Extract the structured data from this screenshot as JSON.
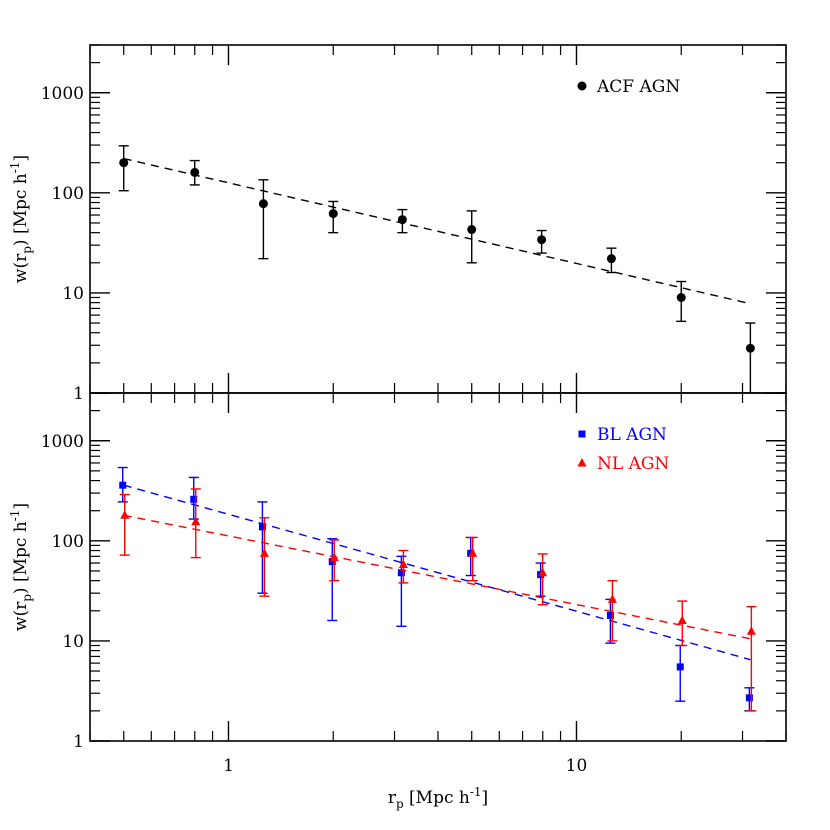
{
  "chart_data": [
    {
      "type": "scatter",
      "xscale": "log",
      "yscale": "log",
      "xlim": [
        0.4,
        40
      ],
      "ylim": [
        1,
        3000
      ],
      "ylabel": "w(r_p) [Mpc h^-1]",
      "ylabel_parts": {
        "main": "w(r",
        "sub": "p",
        "tail": ") [Mpc h",
        "sup": "-1",
        "end": "]"
      },
      "yticks": [
        1,
        10,
        100,
        1000
      ],
      "ytick_labels": [
        "1",
        "10",
        "100",
        "1000"
      ],
      "legend_position": "top-right",
      "series": [
        {
          "name": "ACF AGN",
          "color": "#000000",
          "marker": "circle",
          "x": [
            0.5,
            0.8,
            1.26,
            2.0,
            3.16,
            5.0,
            7.94,
            12.6,
            20.0,
            31.6
          ],
          "y": [
            200,
            160,
            78,
            62,
            54,
            43,
            34,
            22,
            9,
            2.8
          ],
          "err_low": [
            105,
            120,
            22,
            40,
            40,
            20,
            25,
            16,
            5.2,
            1.0
          ],
          "err_high": [
            295,
            210,
            135,
            82,
            68,
            66,
            42,
            28,
            13,
            5.0
          ],
          "fit": {
            "x": [
              0.5,
              31.6
            ],
            "y": [
              220,
              7.8
            ],
            "style": "dashed"
          }
        }
      ]
    },
    {
      "type": "scatter",
      "xscale": "log",
      "yscale": "log",
      "xlim": [
        0.4,
        40
      ],
      "ylim": [
        1,
        3000
      ],
      "xlabel": "r_p [Mpc h^-1]",
      "xlabel_parts": {
        "main": "r",
        "sub": "p",
        "tail": " [Mpc h",
        "sup": "-1",
        "end": "]"
      },
      "ylabel": "w(r_p) [Mpc h^-1]",
      "ylabel_parts": {
        "main": "w(r",
        "sub": "p",
        "tail": ") [Mpc h",
        "sup": "-1",
        "end": "]"
      },
      "xticks": [
        1,
        10
      ],
      "xtick_labels": [
        "1",
        "10"
      ],
      "yticks": [
        1,
        10,
        100,
        1000
      ],
      "ytick_labels": [
        "1",
        "10",
        "100",
        "1000"
      ],
      "legend_position": "top-right",
      "series": [
        {
          "name": "BL AGN",
          "color": "#0000ff",
          "marker": "square",
          "x": [
            0.5,
            0.8,
            1.26,
            2.0,
            3.16,
            5.0,
            7.94,
            12.6,
            20.0,
            31.6
          ],
          "y": [
            360,
            260,
            138,
            62,
            48,
            75,
            46,
            18,
            5.5,
            2.7
          ],
          "err_low": [
            245,
            165,
            30,
            16,
            14,
            45,
            28,
            9.5,
            2.5,
            2.0
          ],
          "err_high": [
            540,
            430,
            245,
            105,
            70,
            108,
            60,
            26,
            9,
            3.4
          ],
          "fit": {
            "x": [
              0.5,
              31.6
            ],
            "y": [
              360,
              6.5
            ],
            "style": "dashed"
          }
        },
        {
          "name": "NL AGN",
          "color": "#ff0000",
          "marker": "triangle",
          "x": [
            0.5,
            0.8,
            1.26,
            2.0,
            3.16,
            5.0,
            7.94,
            12.6,
            20.0,
            31.6
          ],
          "y": [
            180,
            155,
            75,
            68,
            58,
            75,
            48,
            26,
            16,
            12.5
          ],
          "err_low": [
            72,
            68,
            28,
            40,
            38,
            40,
            23,
            10,
            9,
            2.0
          ],
          "err_high": [
            290,
            330,
            170,
            102,
            80,
            108,
            74,
            40,
            25,
            22
          ],
          "fit": {
            "x": [
              0.5,
              31.6
            ],
            "y": [
              180,
              10.5
            ],
            "style": "dashed"
          }
        }
      ]
    }
  ]
}
